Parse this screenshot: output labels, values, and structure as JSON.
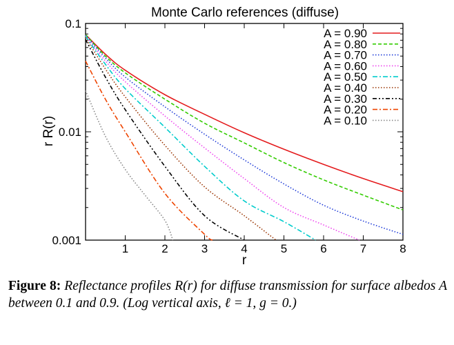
{
  "chart_data": {
    "type": "line",
    "title": "Monte Carlo references (diffuse)",
    "xlabel": "r",
    "ylabel": "r R(r)",
    "xlim": [
      0,
      8
    ],
    "ylim": [
      0.001,
      0.1
    ],
    "yscale": "log",
    "x_ticks": [
      1,
      2,
      3,
      4,
      5,
      6,
      7,
      8
    ],
    "x_tick_labels": [
      "1",
      "2",
      "3",
      "4",
      "5",
      "6",
      "7",
      "8"
    ],
    "y_ticks": [
      0.001,
      0.01,
      0.1
    ],
    "y_tick_labels": [
      "0.001",
      "0.01",
      "0.1"
    ],
    "grid": false,
    "legend_position": "top-right",
    "series": [
      {
        "name": "A = 0.90",
        "color": "#e41a1c",
        "dash": "solid",
        "points": [
          [
            0,
            0.079
          ],
          [
            0.5,
            0.052
          ],
          [
            1,
            0.037
          ],
          [
            2,
            0.022
          ],
          [
            3,
            0.0145
          ],
          [
            4,
            0.0098
          ],
          [
            5,
            0.0069
          ],
          [
            6,
            0.005
          ],
          [
            7,
            0.0037
          ],
          [
            8,
            0.0028
          ]
        ]
      },
      {
        "name": "A = 0.80",
        "color": "#33cc00",
        "dash": "dashed",
        "points": [
          [
            0,
            0.079
          ],
          [
            0.5,
            0.05
          ],
          [
            1,
            0.035
          ],
          [
            2,
            0.02
          ],
          [
            3,
            0.012
          ],
          [
            4,
            0.0079
          ],
          [
            5,
            0.0052
          ],
          [
            6,
            0.0036
          ],
          [
            7,
            0.0026
          ],
          [
            8,
            0.0019
          ]
        ]
      },
      {
        "name": "A = 0.70",
        "color": "#1e3bd8",
        "dash": "dotted",
        "points": [
          [
            0,
            0.078
          ],
          [
            0.5,
            0.048
          ],
          [
            1,
            0.032
          ],
          [
            2,
            0.017
          ],
          [
            3,
            0.0095
          ],
          [
            4,
            0.0055
          ],
          [
            5,
            0.0033
          ],
          [
            6,
            0.0021
          ],
          [
            7,
            0.0015
          ],
          [
            8,
            0.00113
          ]
        ]
      },
      {
        "name": "A = 0.60",
        "color": "#ee44ee",
        "dash": "dotted",
        "points": [
          [
            0,
            0.077
          ],
          [
            0.5,
            0.045
          ],
          [
            1,
            0.029
          ],
          [
            2,
            0.014
          ],
          [
            3,
            0.0071
          ],
          [
            4,
            0.0037
          ],
          [
            5,
            0.002
          ],
          [
            6,
            0.00138
          ],
          [
            6.9,
            0.001
          ]
        ]
      },
      {
        "name": "A = 0.50",
        "color": "#00cccc",
        "dash": "dashdot",
        "points": [
          [
            0,
            0.076
          ],
          [
            0.5,
            0.042
          ],
          [
            1,
            0.025
          ],
          [
            2,
            0.011
          ],
          [
            3,
            0.0048
          ],
          [
            4,
            0.0023
          ],
          [
            5,
            0.00148
          ],
          [
            5.8,
            0.001
          ]
        ]
      },
      {
        "name": "A = 0.40",
        "color": "#993300",
        "dash": "dotted",
        "points": [
          [
            0,
            0.074
          ],
          [
            0.5,
            0.038
          ],
          [
            1,
            0.021
          ],
          [
            2,
            0.0075
          ],
          [
            3,
            0.0031
          ],
          [
            4,
            0.00168
          ],
          [
            4.8,
            0.001
          ]
        ]
      },
      {
        "name": "A = 0.30",
        "color": "#000000",
        "dash": "dashdotdot",
        "points": [
          [
            0,
            0.071
          ],
          [
            0.5,
            0.032
          ],
          [
            1,
            0.016
          ],
          [
            2,
            0.0048
          ],
          [
            3,
            0.00168
          ],
          [
            4,
            0.001
          ]
        ]
      },
      {
        "name": "A = 0.20",
        "color": "#ee4400",
        "dash": "dashdot",
        "points": [
          [
            0,
            0.045
          ],
          [
            0.5,
            0.02
          ],
          [
            1,
            0.01
          ],
          [
            2,
            0.0027
          ],
          [
            3,
            0.00113
          ],
          [
            3.2,
            0.001
          ]
        ]
      },
      {
        "name": "A = 0.10",
        "color": "#888888",
        "dash": "dotted",
        "points": [
          [
            0,
            0.024
          ],
          [
            0.5,
            0.0091
          ],
          [
            1,
            0.0045
          ],
          [
            1.5,
            0.0026
          ],
          [
            2,
            0.00152
          ],
          [
            2.2,
            0.001
          ]
        ]
      }
    ]
  },
  "caption": {
    "label": "Figure 8:",
    "text": "Reflectance profiles R(r) for diffuse transmission for surface albedos A between 0.1 and 0.9. (Log vertical axis, ℓ = 1, g = 0.)"
  }
}
